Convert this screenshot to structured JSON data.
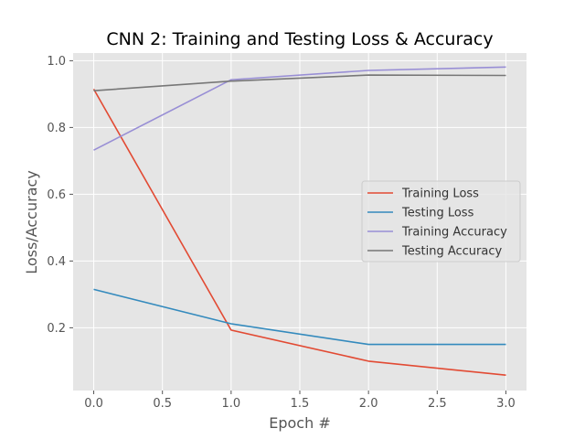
{
  "chart_data": {
    "type": "line",
    "title": "CNN 2: Training and Testing Loss & Accuracy",
    "xlabel": "Epoch #",
    "ylabel": "Loss/Accuracy",
    "x": [
      0,
      1,
      2,
      3
    ],
    "xlim": [
      -0.15,
      3.15
    ],
    "ylim": [
      0.012,
      1.023
    ],
    "xticks": [
      0.0,
      0.5,
      1.0,
      1.5,
      2.0,
      2.5,
      3.0
    ],
    "xtick_labels": [
      "0.0",
      "0.5",
      "1.0",
      "1.5",
      "2.0",
      "2.5",
      "3.0"
    ],
    "yticks": [
      0.2,
      0.4,
      0.6,
      0.8,
      1.0
    ],
    "ytick_labels": [
      "0.2",
      "0.4",
      "0.6",
      "0.8",
      "1.0"
    ],
    "grid": true,
    "legend_position": "center-right",
    "series": [
      {
        "name": "Training Loss",
        "color": "#E24A33",
        "values": [
          0.915,
          0.193,
          0.1,
          0.058
        ]
      },
      {
        "name": "Testing Loss",
        "color": "#348ABD",
        "values": [
          0.315,
          0.212,
          0.15,
          0.15
        ]
      },
      {
        "name": "Training Accuracy",
        "color": "#988ED5",
        "values": [
          0.732,
          0.943,
          0.971,
          0.981
        ]
      },
      {
        "name": "Testing Accuracy",
        "color": "#777777",
        "values": [
          0.91,
          0.939,
          0.957,
          0.956
        ]
      }
    ]
  }
}
